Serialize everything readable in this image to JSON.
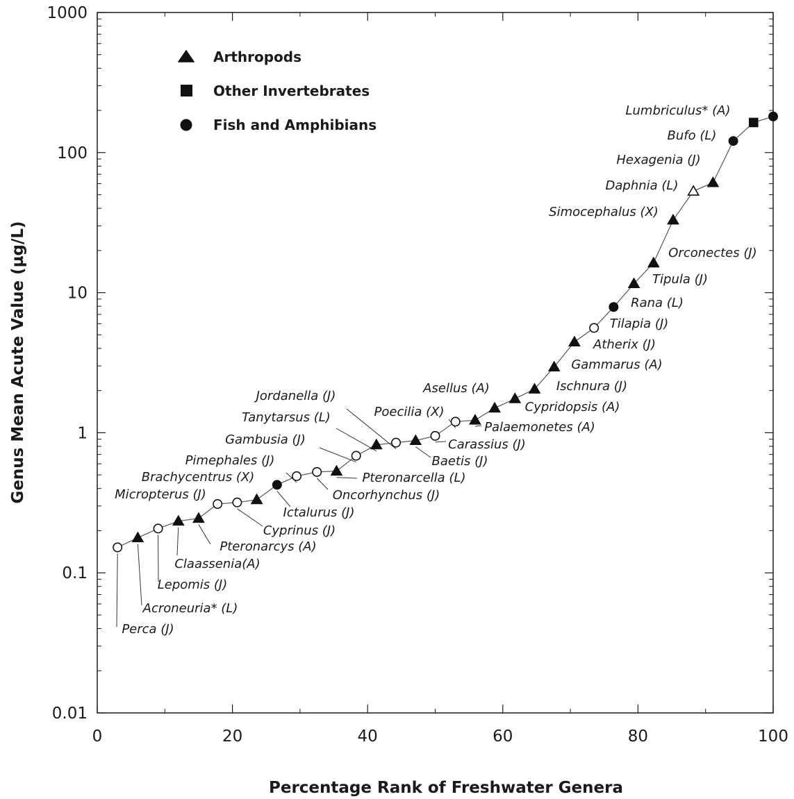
{
  "chart_data": {
    "type": "scatter",
    "xlabel": "Percentage Rank of Freshwater Genera",
    "ylabel": "Genus Mean Acute Value (µg/L)",
    "xlim": [
      0,
      100
    ],
    "ylim": [
      0.01,
      1000
    ],
    "yscale": "log",
    "x_ticks": [
      0,
      20,
      40,
      60,
      80,
      100
    ],
    "x_tick_labels": [
      "0",
      "20",
      "40",
      "60",
      "80",
      "100"
    ],
    "y_ticks": [
      0.01,
      0.1,
      1,
      10,
      100,
      1000
    ],
    "y_tick_labels": [
      "0.01",
      "0.1",
      "1",
      "10",
      "100",
      "1000"
    ],
    "grid": false,
    "connected": true,
    "legend": {
      "placement": "top-left",
      "entries": [
        {
          "label": "Arthropods",
          "marker": "triangle"
        },
        {
          "label": "Other Invertebrates",
          "marker": "square"
        },
        {
          "label": "Fish and Amphibians",
          "marker": "circle"
        }
      ]
    },
    "points": [
      {
        "name": "Perca (J)",
        "x": 3.0,
        "y": 0.152,
        "marker": "circle",
        "filled": false
      },
      {
        "name": "Acroneuria* (L)",
        "x": 6.0,
        "y": 0.178,
        "marker": "triangle",
        "filled": true
      },
      {
        "name": "Lepomis (J)",
        "x": 9.0,
        "y": 0.207,
        "marker": "circle",
        "filled": false
      },
      {
        "name": "Claassenia(A)",
        "x": 12.0,
        "y": 0.234,
        "marker": "triangle",
        "filled": true
      },
      {
        "name": "Pteronarcys (A)",
        "x": 15.0,
        "y": 0.245,
        "marker": "triangle",
        "filled": true
      },
      {
        "name": "Micropterus (J)",
        "x": 17.8,
        "y": 0.31,
        "marker": "circle",
        "filled": false
      },
      {
        "name": "Cyprinus (J)",
        "x": 20.7,
        "y": 0.318,
        "marker": "circle",
        "filled": false
      },
      {
        "name": "Brachycentrus (X)",
        "x": 23.6,
        "y": 0.333,
        "marker": "triangle",
        "filled": true
      },
      {
        "name": "Ictalurus (J)",
        "x": 26.6,
        "y": 0.425,
        "marker": "circle",
        "filled": true
      },
      {
        "name": "Pimephales (J)",
        "x": 29.5,
        "y": 0.49,
        "marker": "circle",
        "filled": false
      },
      {
        "name": "Oncorhynchus (J)",
        "x": 32.5,
        "y": 0.525,
        "marker": "circle",
        "filled": false
      },
      {
        "name": "Pteronarcella (L)",
        "x": 35.4,
        "y": 0.532,
        "marker": "triangle",
        "filled": true
      },
      {
        "name": "Gambusia (J)",
        "x": 38.3,
        "y": 0.685,
        "marker": "circle",
        "filled": false
      },
      {
        "name": "Tanytarsus (L)",
        "x": 41.3,
        "y": 0.82,
        "marker": "triangle",
        "filled": true
      },
      {
        "name": "Jordanella (J)",
        "x": 44.2,
        "y": 0.85,
        "marker": "circle",
        "filled": false
      },
      {
        "name": "Baetis (J)",
        "x": 47.1,
        "y": 0.88,
        "marker": "triangle",
        "filled": true
      },
      {
        "name": "Carassius (J)",
        "x": 50.0,
        "y": 0.95,
        "marker": "circle",
        "filled": false
      },
      {
        "name": "Poecilia (X)",
        "x": 53.0,
        "y": 1.2,
        "marker": "circle",
        "filled": false
      },
      {
        "name": "Palaemonetes (A)",
        "x": 55.9,
        "y": 1.23,
        "marker": "triangle",
        "filled": true
      },
      {
        "name": "Asellus (A)",
        "x": 58.8,
        "y": 1.5,
        "marker": "triangle",
        "filled": true
      },
      {
        "name": "Cypridopsis (A)",
        "x": 61.8,
        "y": 1.75,
        "marker": "triangle",
        "filled": true
      },
      {
        "name": "Ischnura (J)",
        "x": 64.7,
        "y": 2.05,
        "marker": "triangle",
        "filled": true
      },
      {
        "name": "Gammarus (A)",
        "x": 67.6,
        "y": 2.95,
        "marker": "triangle",
        "filled": true
      },
      {
        "name": "Atherix (J)",
        "x": 70.6,
        "y": 4.45,
        "marker": "triangle",
        "filled": true
      },
      {
        "name": "Tilapia (J)",
        "x": 73.5,
        "y": 5.6,
        "marker": "circle",
        "filled": false
      },
      {
        "name": "Rana (L)",
        "x": 76.4,
        "y": 7.9,
        "marker": "circle",
        "filled": true
      },
      {
        "name": "Tipula (J)",
        "x": 79.4,
        "y": 11.6,
        "marker": "triangle",
        "filled": true
      },
      {
        "name": "Orconectes (J)",
        "x": 82.3,
        "y": 16.3,
        "marker": "triangle",
        "filled": true
      },
      {
        "name": "Simocephalus (X)",
        "x": 85.2,
        "y": 33.0,
        "marker": "triangle",
        "filled": true
      },
      {
        "name": "Daphnia (L)",
        "x": 88.2,
        "y": 53.0,
        "marker": "triangle",
        "filled": false
      },
      {
        "name": "Hexagenia (J)",
        "x": 91.1,
        "y": 61.0,
        "marker": "triangle",
        "filled": true
      },
      {
        "name": "Bufo (L)",
        "x": 94.1,
        "y": 121.0,
        "marker": "circle",
        "filled": true
      },
      {
        "name": "Lumbriculus* (A)",
        "x": 97.1,
        "y": 164.0,
        "marker": "square",
        "filled": true
      },
      {
        "name": "",
        "x": 100.0,
        "y": 181.0,
        "marker": "circle",
        "filled": true
      }
    ]
  }
}
